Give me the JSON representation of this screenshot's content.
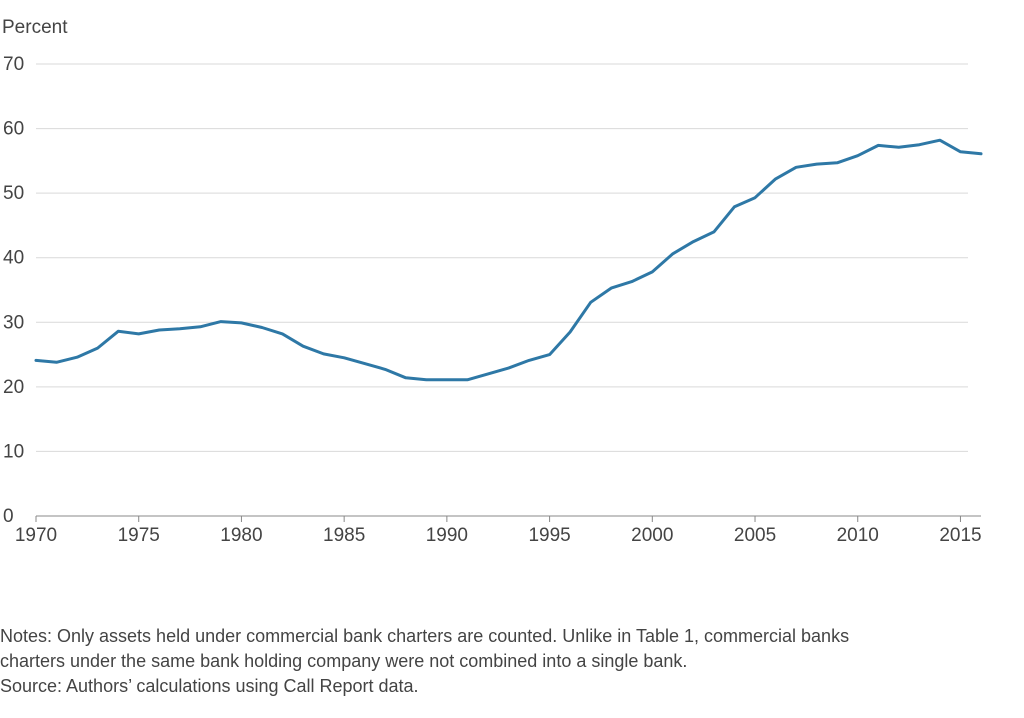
{
  "chart_data": {
    "type": "line",
    "ylabel": "Percent",
    "ylim": [
      0,
      70
    ],
    "xlim": [
      1970,
      2016
    ],
    "y_ticks": [
      0,
      10,
      20,
      30,
      40,
      50,
      60,
      70
    ],
    "x_ticks": [
      1970,
      1975,
      1980,
      1985,
      1990,
      1995,
      2000,
      2005,
      2010,
      2015
    ],
    "grid": true,
    "line_color": "#2e78a6",
    "series": [
      {
        "x": [
          1970,
          1971,
          1972,
          1973,
          1974,
          1975,
          1976,
          1977,
          1978,
          1979,
          1980,
          1981,
          1982,
          1983,
          1984,
          1985,
          1986,
          1987,
          1988,
          1989,
          1990,
          1991,
          1992,
          1993,
          1994,
          1995,
          1996,
          1997,
          1998,
          1999,
          2000,
          2001,
          2002,
          2003,
          2004,
          2005,
          2006,
          2007,
          2008,
          2009,
          2010,
          2011,
          2012,
          2013,
          2014,
          2015,
          2016
        ],
        "values": [
          24.1,
          23.8,
          24.6,
          26.0,
          28.6,
          28.2,
          28.8,
          29.0,
          29.3,
          30.1,
          29.9,
          29.2,
          28.2,
          26.3,
          25.1,
          24.5,
          23.6,
          22.7,
          21.4,
          21.1,
          21.1,
          21.1,
          22.0,
          22.9,
          24.1,
          25.0,
          28.5,
          33.1,
          35.3,
          36.3,
          37.8,
          40.6,
          42.5,
          44.0,
          47.9,
          49.3,
          52.2,
          54.0,
          54.5,
          54.7,
          55.8,
          57.4,
          57.1,
          57.5,
          58.2,
          56.4,
          56.1
        ]
      }
    ]
  },
  "notes": {
    "line1": "Notes: Only assets held under commercial bank charters are counted. Unlike in Table 1, commercial banks",
    "line2": "charters under the same bank holding company were not combined into a single bank.",
    "line3": "Source: Authors’ calculations using Call Report data."
  }
}
